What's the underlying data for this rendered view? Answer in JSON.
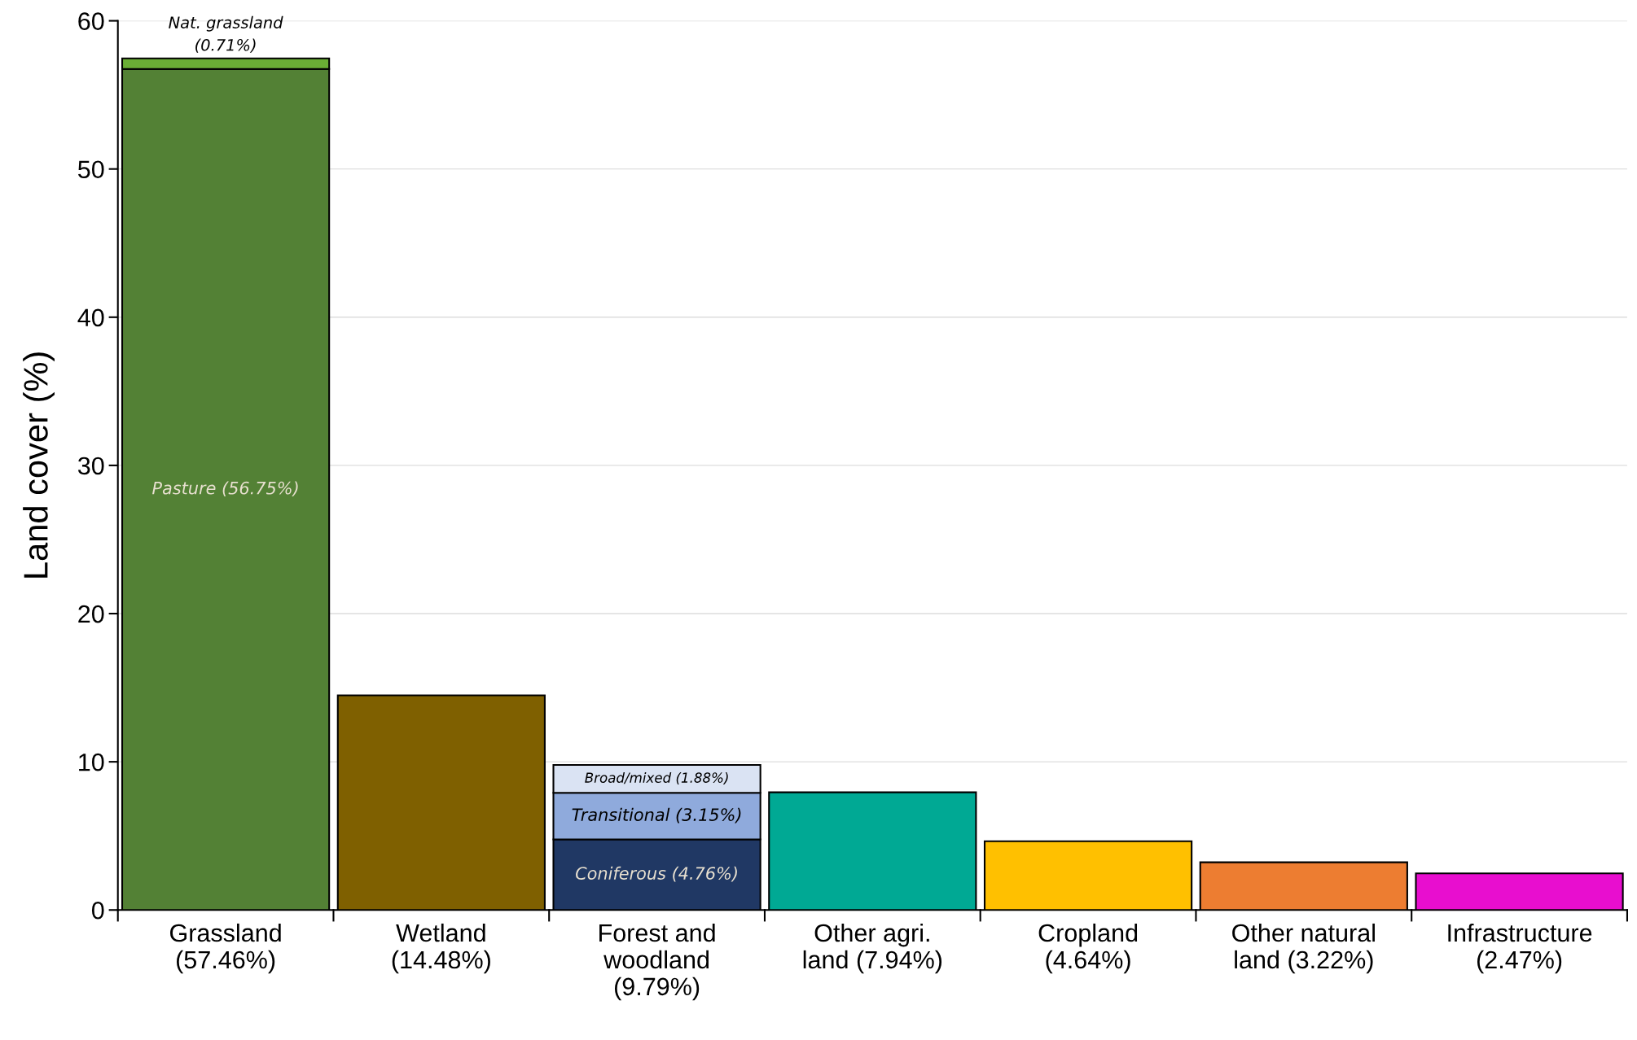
{
  "chart_data": {
    "type": "bar",
    "stacked": true,
    "ylabel": "Land cover (%)",
    "categories": [
      "Grassland\n(57.46%)",
      "Wetland\n(14.48%)",
      "Forest and\nwoodland\n(9.79%)",
      "Other agri.\nland (7.94%)",
      "Cropland\n(4.64%)",
      "Other natural\nland (3.22%)",
      "Infrastructure\n(2.47%)"
    ],
    "series": [
      {
        "values": [
          56.75,
          14.48,
          4.76,
          7.94,
          4.64,
          3.22,
          2.47
        ],
        "colors": [
          "#538135",
          "#7f6000",
          "#203864",
          "#00a994",
          "#ffc000",
          "#ed7d31",
          "#e80ecf"
        ],
        "value_labels": [
          "Pasture (56.75%)",
          null,
          "Coniferous (4.76%)",
          null,
          null,
          null,
          null
        ]
      },
      {
        "values": [
          0.71,
          null,
          3.15,
          null,
          null,
          null,
          null
        ],
        "colors": [
          "#6aae35",
          null,
          "#8faadc",
          null,
          null,
          null,
          null
        ],
        "value_labels": [
          "Nat. grassland\n(0.71%)",
          null,
          "Transitional (3.15%)",
          null,
          null,
          null,
          null
        ]
      },
      {
        "values": [
          null,
          null,
          1.88,
          null,
          null,
          null,
          null
        ],
        "colors": [
          null,
          null,
          "#dae3f3",
          null,
          null,
          null,
          null
        ],
        "value_labels": [
          null,
          null,
          "Broad/mixed (1.88%)",
          null,
          null,
          null,
          null
        ]
      }
    ],
    "ylim": [
      0,
      60
    ],
    "yticks": [
      0,
      10,
      20,
      30,
      40,
      50,
      60
    ],
    "grid": "y",
    "legend": false
  }
}
